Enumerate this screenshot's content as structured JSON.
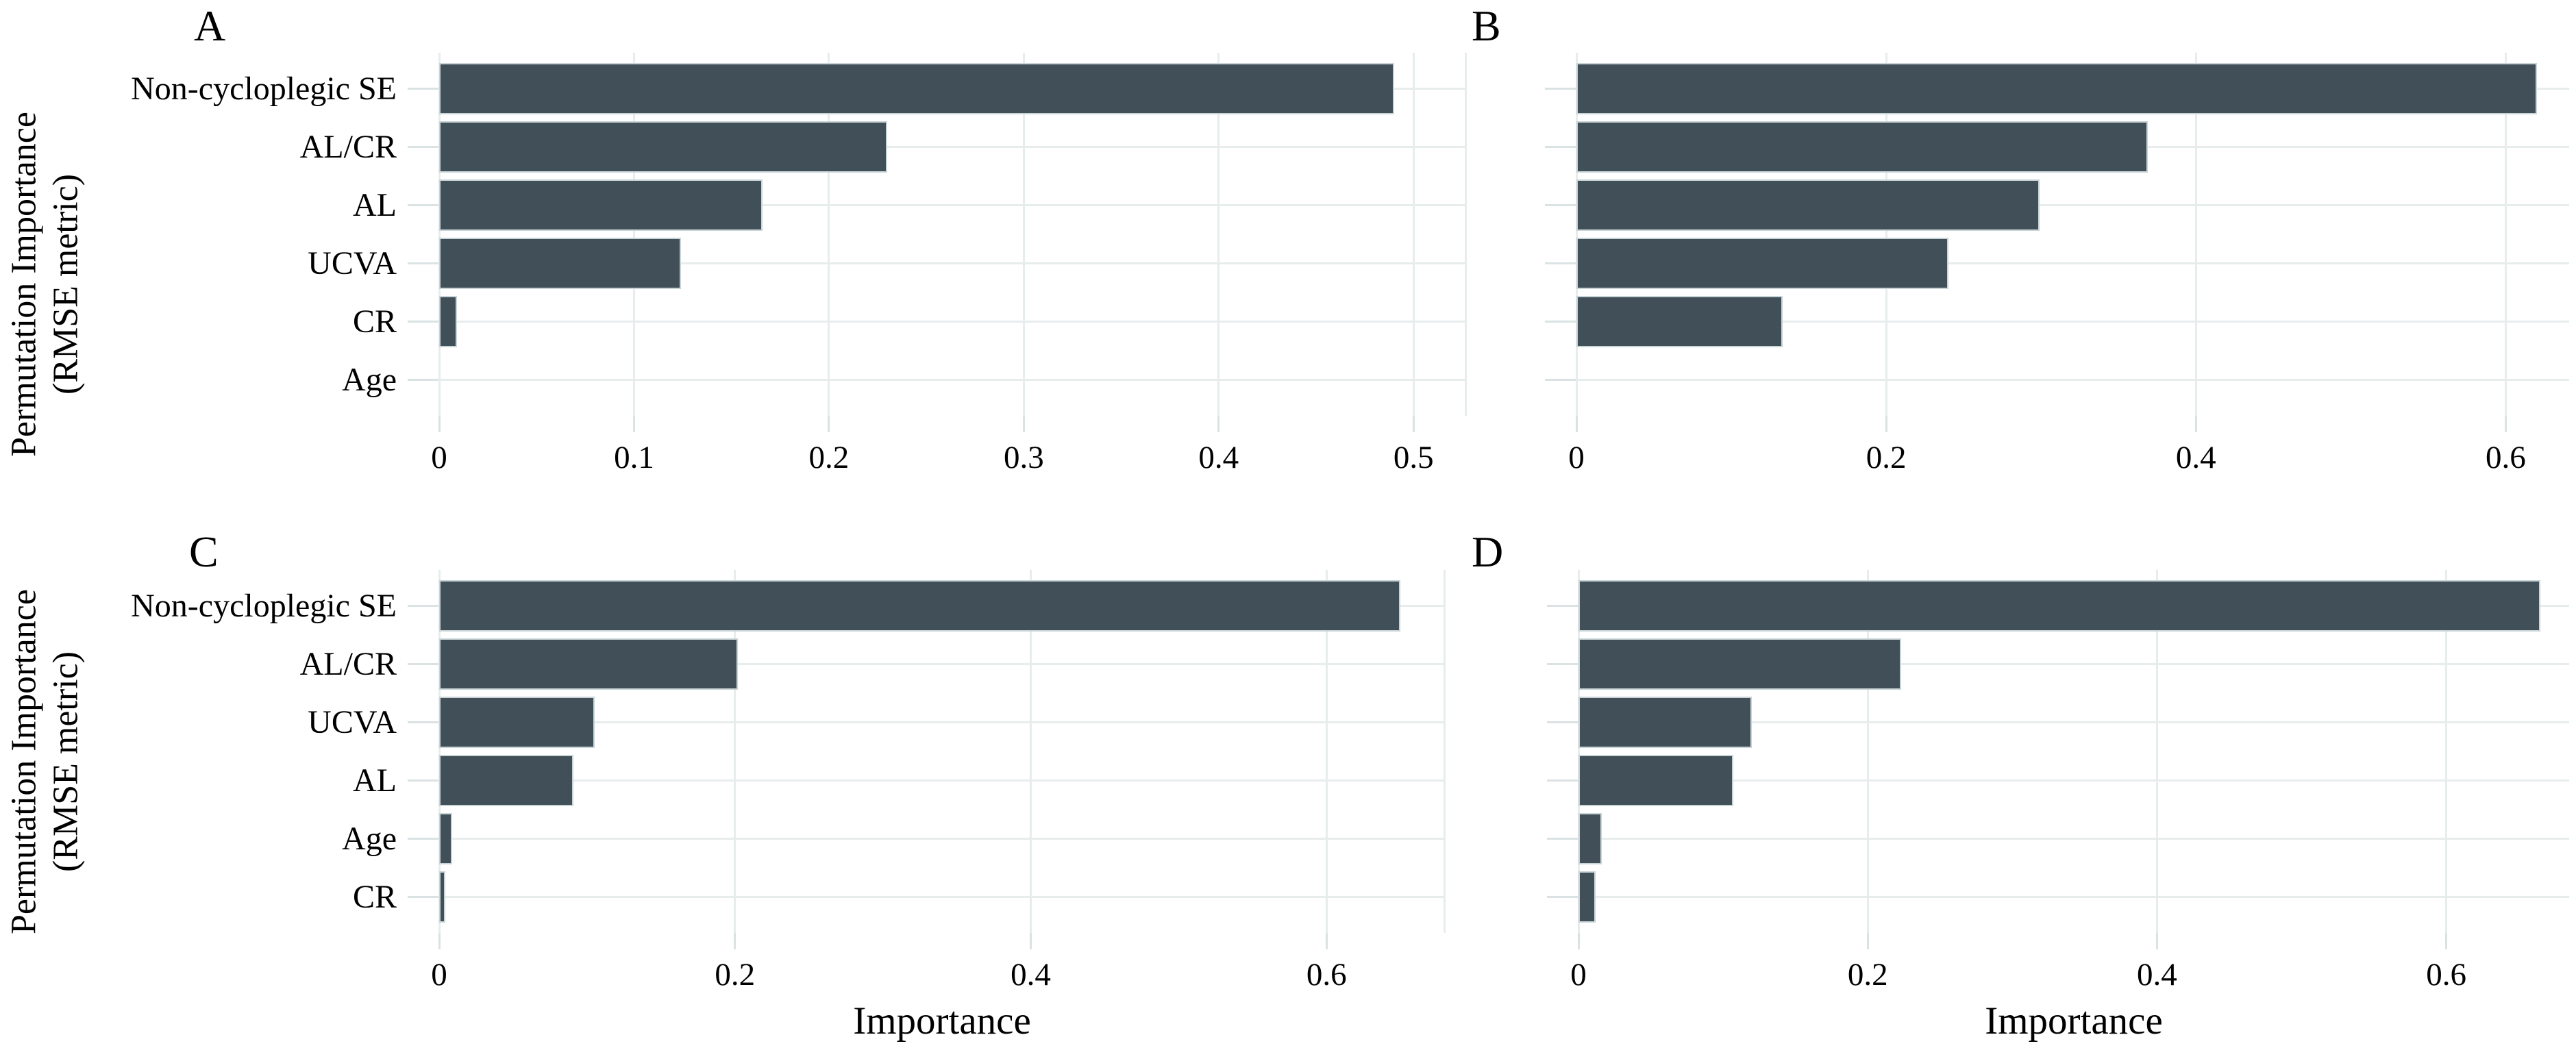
{
  "chart_data": {
    "type": "bar",
    "orientation": "horizontal",
    "y_axis_title": "Permutation Importance\n(RMSE metric)",
    "x_axis_title": "Importance",
    "grid": true,
    "legend": false,
    "bar_color": "#415058",
    "bar_border_color": "#c9d4d7",
    "gridline_color": "#e7eced",
    "panels": [
      {
        "letter": "A",
        "categories": [
          "Non-cycloplegic SE",
          "AL/CR",
          "AL",
          "UCVA",
          "CR",
          "Age"
        ],
        "values": [
          0.49,
          0.23,
          0.166,
          0.124,
          0.009,
          0
        ],
        "x_ticks": [
          0,
          0.1,
          0.2,
          0.3,
          0.4,
          0.5
        ],
        "x_tick_labels": [
          "0",
          "0.1",
          "0.2",
          "0.3",
          "0.4",
          "0.5"
        ],
        "xlim": [
          0,
          0.527
        ],
        "y_labels_visible": true,
        "x_title_visible": false
      },
      {
        "letter": "B",
        "categories": [
          "",
          "",
          "",
          "",
          "",
          ""
        ],
        "values": [
          0.62,
          0.369,
          0.299,
          0.24,
          0.133,
          0
        ],
        "x_ticks": [
          0,
          0.2,
          0.4,
          0.6
        ],
        "x_tick_labels": [
          "0",
          "0.2",
          "0.4",
          "0.6"
        ],
        "xlim": [
          0,
          0.641
        ],
        "y_labels_visible": false,
        "x_title_visible": false
      },
      {
        "letter": "C",
        "categories": [
          "Non-cycloplegic SE",
          "AL/CR",
          "UCVA",
          "AL",
          "Age",
          "CR"
        ],
        "values": [
          0.65,
          0.202,
          0.105,
          0.091,
          0.009,
          0.004
        ],
        "x_ticks": [
          0,
          0.2,
          0.4,
          0.6
        ],
        "x_tick_labels": [
          "0",
          "0.2",
          "0.4",
          "0.6"
        ],
        "xlim": [
          0,
          0.68
        ],
        "y_labels_visible": true,
        "x_title_visible": true
      },
      {
        "letter": "D",
        "categories": [
          "",
          "",
          "",
          "",
          "",
          ""
        ],
        "values": [
          0.665,
          0.223,
          0.12,
          0.107,
          0.016,
          0.012
        ],
        "x_ticks": [
          0,
          0.2,
          0.4,
          0.6
        ],
        "x_tick_labels": [
          "0",
          "0.2",
          "0.4",
          "0.6"
        ],
        "xlim": [
          0,
          0.685
        ],
        "y_labels_visible": false,
        "x_title_visible": true
      }
    ]
  }
}
